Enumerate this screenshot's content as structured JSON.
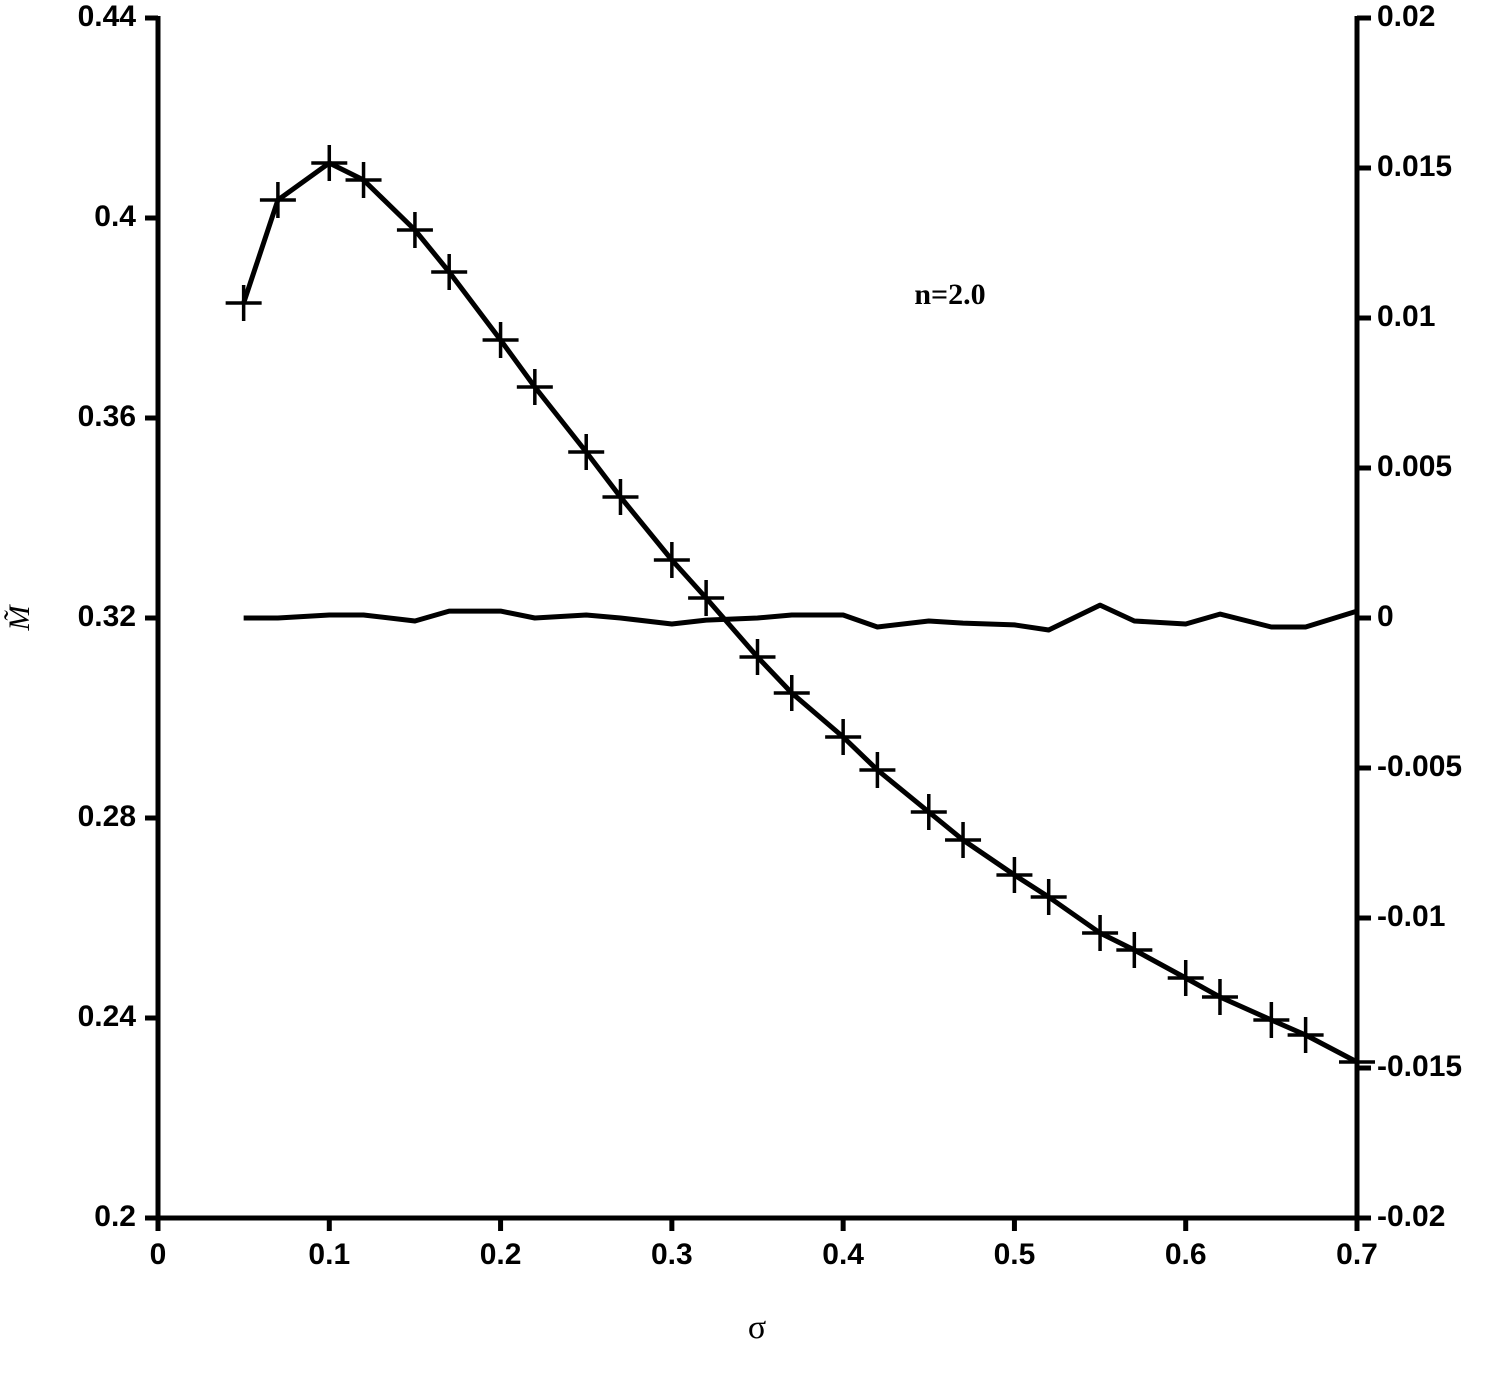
{
  "chart_data": {
    "type": "line",
    "x_label": "σ",
    "y_label": "M̃",
    "annotation": "n=2.0",
    "xlim": [
      0,
      0.7
    ],
    "xticks": [
      0,
      0.1,
      0.2,
      0.3,
      0.4,
      0.5,
      0.6,
      0.7
    ],
    "ylim": [
      0.2,
      0.44
    ],
    "yticks": [
      0.2,
      0.24,
      0.28,
      0.32,
      0.36,
      0.4,
      0.44
    ],
    "y2lim": [
      -0.02,
      0.02
    ],
    "y2ticks": [
      -0.02,
      -0.015,
      -0.01,
      -0.005,
      0,
      0.005,
      0.01,
      0.015,
      0.02
    ],
    "series": [
      {
        "color": "#000000",
        "marker": "+",
        "axis": "y",
        "x": [
          0.05,
          0.07,
          0.1,
          0.12,
          0.15,
          0.17,
          0.2,
          0.22,
          0.25,
          0.27,
          0.3,
          0.32,
          0.35,
          0.37,
          0.4,
          0.42,
          0.45,
          0.47,
          0.5,
          0.52,
          0.55,
          0.57,
          0.6,
          0.62,
          0.65,
          0.67,
          0.7
        ],
        "values": [
          0.383,
          0.4036,
          0.411,
          0.4076,
          0.3976,
          0.3892,
          0.3756,
          0.3662,
          0.3532,
          0.3442,
          0.3316,
          0.324,
          0.3122,
          0.305,
          0.2962,
          0.2896,
          0.2812,
          0.2756,
          0.2686,
          0.2642,
          0.257,
          0.2536,
          0.248,
          0.2442,
          0.2396,
          0.2366,
          0.2312
        ]
      },
      {
        "color": "#000000",
        "axis": "y2",
        "x": [
          0.05,
          0.07,
          0.1,
          0.12,
          0.15,
          0.17,
          0.2,
          0.22,
          0.25,
          0.27,
          0.3,
          0.32,
          0.35,
          0.37,
          0.4,
          0.42,
          0.45,
          0.47,
          0.5,
          0.52,
          0.55,
          0.57,
          0.6,
          0.62,
          0.65,
          0.67,
          0.7
        ],
        "values": [
          0,
          0,
          0.0001,
          0.0001,
          -0.0001,
          0.00023,
          0.00023,
          0,
          0.0001,
          0,
          -0.0002,
          -7e-05,
          0,
          0.0001,
          0.0001,
          -0.0003,
          -0.0001,
          -0.00017,
          -0.00023,
          -0.0004,
          0.00043,
          -0.0001,
          -0.0002,
          0.00013,
          -0.0003,
          -0.0003,
          0.00023
        ]
      }
    ]
  }
}
